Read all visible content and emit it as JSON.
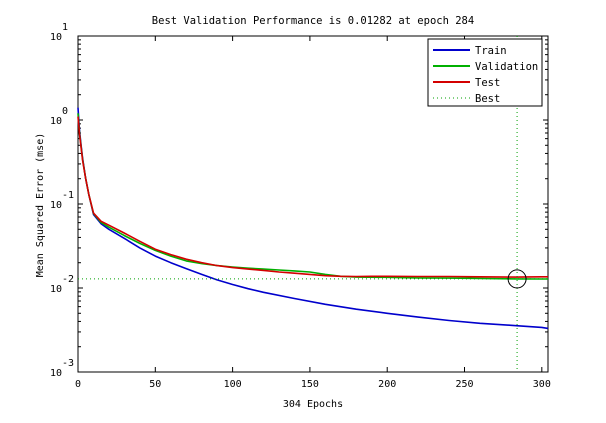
{
  "chart_data": {
    "type": "line",
    "title": "Best Validation Performance is 0.01282 at epoch 284",
    "xlabel": "304 Epochs",
    "ylabel": "Mean Squared Error  (mse)",
    "xlim": [
      0,
      304
    ],
    "ylim": [
      0.001,
      10
    ],
    "yscale": "log",
    "grid": false,
    "legend_position": "top-right",
    "x_ticks": [
      0,
      50,
      100,
      150,
      200,
      250,
      300
    ],
    "y_ticks": [
      {
        "value": 0.001,
        "base": "10",
        "exp": "-3"
      },
      {
        "value": 0.01,
        "base": "10",
        "exp": "-2"
      },
      {
        "value": 0.1,
        "base": "10",
        "exp": "-1"
      },
      {
        "value": 1,
        "base": "10",
        "exp": "0"
      },
      {
        "value": 10,
        "base": "10",
        "exp": "1"
      }
    ],
    "best": {
      "epoch": 284,
      "value": 0.01282
    },
    "series": [
      {
        "name": "Train",
        "color": "#0000cc",
        "style": "solid",
        "x": [
          0,
          1,
          2,
          3,
          5,
          7,
          10,
          15,
          20,
          30,
          40,
          50,
          60,
          70,
          80,
          90,
          100,
          110,
          120,
          140,
          160,
          180,
          200,
          220,
          240,
          260,
          280,
          300,
          304
        ],
        "y": [
          1.4,
          0.75,
          0.5,
          0.35,
          0.2,
          0.13,
          0.075,
          0.058,
          0.05,
          0.039,
          0.03,
          0.024,
          0.02,
          0.017,
          0.0145,
          0.0125,
          0.011,
          0.0098,
          0.0089,
          0.0075,
          0.0064,
          0.0056,
          0.005,
          0.0045,
          0.0041,
          0.0038,
          0.0036,
          0.0034,
          0.0033
        ]
      },
      {
        "name": "Validation",
        "color": "#00b000",
        "style": "solid",
        "x": [
          0,
          1,
          2,
          3,
          5,
          7,
          10,
          15,
          20,
          30,
          40,
          50,
          60,
          70,
          80,
          90,
          100,
          110,
          120,
          130,
          140,
          150,
          160,
          170,
          180,
          200,
          220,
          240,
          260,
          284,
          300,
          304
        ],
        "y": [
          1.2,
          0.7,
          0.48,
          0.34,
          0.2,
          0.13,
          0.077,
          0.06,
          0.053,
          0.042,
          0.034,
          0.028,
          0.024,
          0.021,
          0.0195,
          0.0185,
          0.0178,
          0.0172,
          0.0168,
          0.0164,
          0.016,
          0.0155,
          0.0145,
          0.0138,
          0.0135,
          0.0134,
          0.0132,
          0.0131,
          0.013,
          0.01282,
          0.0128,
          0.0128
        ]
      },
      {
        "name": "Test",
        "color": "#d40000",
        "style": "solid",
        "x": [
          0,
          1,
          2,
          3,
          5,
          7,
          10,
          15,
          20,
          30,
          40,
          50,
          60,
          70,
          80,
          90,
          100,
          110,
          120,
          130,
          140,
          150,
          160,
          170,
          180,
          190,
          200,
          220,
          240,
          260,
          284,
          300,
          304
        ],
        "y": [
          1.1,
          0.68,
          0.47,
          0.33,
          0.2,
          0.13,
          0.078,
          0.062,
          0.056,
          0.045,
          0.036,
          0.029,
          0.025,
          0.022,
          0.02,
          0.0185,
          0.0175,
          0.0168,
          0.0162,
          0.0155,
          0.015,
          0.0145,
          0.014,
          0.0138,
          0.0137,
          0.0138,
          0.0138,
          0.0137,
          0.0137,
          0.0136,
          0.0135,
          0.0136,
          0.0136
        ]
      }
    ],
    "best_legend_label": "Best",
    "best_color": "#00a000"
  }
}
